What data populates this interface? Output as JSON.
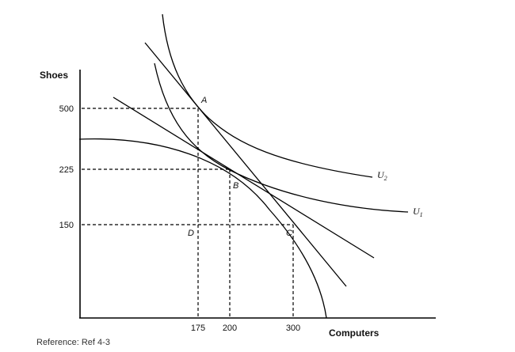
{
  "chart_data": {
    "type": "line",
    "xlabel": "Computers",
    "ylabel": "Shoes",
    "x_ticks": [
      175,
      200,
      300
    ],
    "y_ticks": [
      500,
      225,
      150
    ],
    "points": [
      {
        "label": "A",
        "x": 175,
        "y": 500
      },
      {
        "label": "B",
        "x": 200,
        "y": 225
      },
      {
        "label": "C",
        "x": 300,
        "y": 150
      },
      {
        "label": "D",
        "x": 175,
        "y": 150
      }
    ],
    "curve_labels": [
      {
        "name": "U",
        "sub": "2"
      },
      {
        "name": "U",
        "sub": "1"
      }
    ]
  },
  "reference": "Reference: Ref 4-3"
}
